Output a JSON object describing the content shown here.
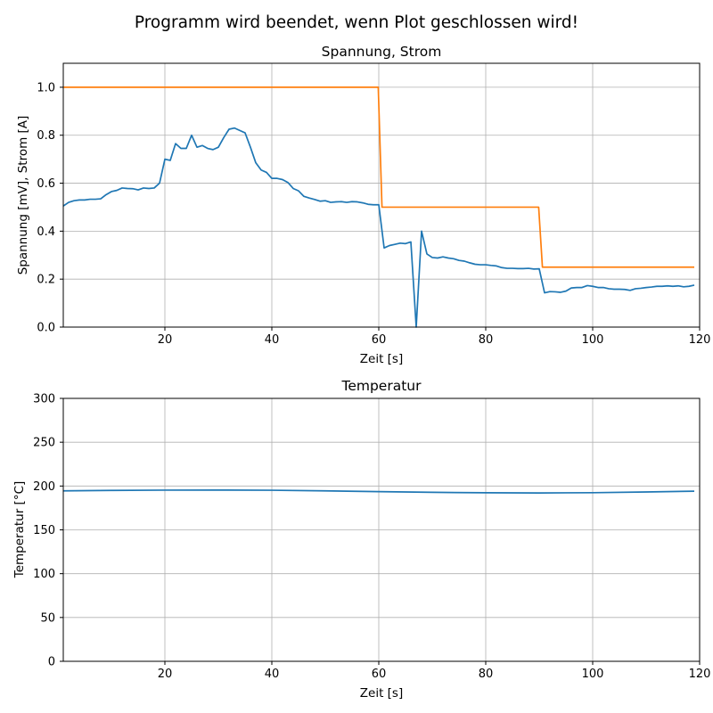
{
  "figure": {
    "suptitle": "Programm wird beendet, wenn Plot geschlossen wird!"
  },
  "colors": {
    "series1": "#1f77b4",
    "series2": "#ff7f0e",
    "grid": "#b0b0b0",
    "axis": "#000000",
    "background": "#ffffff"
  },
  "chart_data": [
    {
      "type": "line",
      "title": "Spannung, Strom",
      "xlabel": "Zeit [s]",
      "ylabel": "Spannung [mV], Strom [A]",
      "xlim": [
        1,
        120
      ],
      "ylim": [
        0,
        1.1
      ],
      "xticks": [
        20,
        40,
        60,
        80,
        100,
        120
      ],
      "xtick_labels": [
        "20",
        "40",
        "60",
        "80",
        "100",
        "120"
      ],
      "yticks": [
        0,
        0.2,
        0.4,
        0.6,
        0.8,
        1.0
      ],
      "ytick_labels": [
        "0.0",
        "0.2",
        "0.4",
        "0.6",
        "0.8",
        "1.0"
      ],
      "grid": true,
      "series": [
        {
          "color": "#1f77b4",
          "x": [
            1,
            2,
            3,
            4,
            5,
            6,
            7,
            8,
            9,
            10,
            11,
            12,
            13,
            14,
            15,
            16,
            17,
            18,
            19,
            20,
            21,
            22,
            23,
            24,
            25,
            26,
            27,
            28,
            29,
            30,
            31,
            32,
            33,
            34,
            35,
            36,
            37,
            38,
            39,
            40,
            41,
            42,
            43,
            44,
            45,
            46,
            47,
            48,
            49,
            50,
            51,
            52,
            53,
            54,
            55,
            56,
            57,
            58,
            59,
            60,
            61,
            62,
            63,
            64,
            65,
            66,
            67,
            68,
            69,
            70,
            71,
            72,
            73,
            74,
            75,
            76,
            77,
            78,
            79,
            80,
            81,
            82,
            83,
            84,
            85,
            86,
            87,
            88,
            89,
            90,
            91,
            92,
            93,
            94,
            95,
            96,
            97,
            98,
            99,
            100,
            101,
            102,
            103,
            104,
            105,
            106,
            107,
            108,
            109,
            110,
            111,
            112,
            113,
            114,
            115,
            116,
            117,
            118,
            119
          ],
          "y": [
            0.505,
            0.52,
            0.527,
            0.53,
            0.53,
            0.533,
            0.533,
            0.535,
            0.552,
            0.565,
            0.57,
            0.58,
            0.578,
            0.577,
            0.572,
            0.58,
            0.578,
            0.58,
            0.6,
            0.7,
            0.695,
            0.765,
            0.745,
            0.745,
            0.8,
            0.75,
            0.757,
            0.745,
            0.74,
            0.75,
            0.79,
            0.825,
            0.83,
            0.82,
            0.81,
            0.75,
            0.685,
            0.655,
            0.645,
            0.62,
            0.62,
            0.615,
            0.603,
            0.578,
            0.568,
            0.545,
            0.538,
            0.532,
            0.525,
            0.527,
            0.52,
            0.522,
            0.523,
            0.52,
            0.523,
            0.522,
            0.518,
            0.512,
            0.51,
            0.51,
            0.33,
            0.34,
            0.345,
            0.35,
            0.348,
            0.355,
            0.0,
            0.4,
            0.305,
            0.29,
            0.288,
            0.293,
            0.288,
            0.285,
            0.278,
            0.275,
            0.268,
            0.262,
            0.26,
            0.26,
            0.257,
            0.255,
            0.248,
            0.245,
            0.245,
            0.244,
            0.244,
            0.245,
            0.242,
            0.243,
            0.143,
            0.148,
            0.147,
            0.145,
            0.15,
            0.163,
            0.165,
            0.165,
            0.173,
            0.17,
            0.165,
            0.165,
            0.16,
            0.158,
            0.158,
            0.157,
            0.153,
            0.16,
            0.162,
            0.165,
            0.167,
            0.17,
            0.17,
            0.172,
            0.17,
            0.172,
            0.168,
            0.17,
            0.175
          ]
        },
        {
          "color": "#ff7f0e",
          "x": [
            1,
            59.9,
            60.6,
            89.9,
            90.6,
            119
          ],
          "y": [
            1.0,
            1.0,
            0.5,
            0.5,
            0.25,
            0.25
          ]
        }
      ]
    },
    {
      "type": "line",
      "title": "Temperatur",
      "xlabel": "Zeit [s]",
      "ylabel": "Temperatur [°C]",
      "xlim": [
        1,
        120
      ],
      "ylim": [
        0,
        300
      ],
      "xticks": [
        20,
        40,
        60,
        80,
        100,
        120
      ],
      "xtick_labels": [
        "20",
        "40",
        "60",
        "80",
        "100",
        "120"
      ],
      "yticks": [
        0,
        50,
        100,
        150,
        200,
        250,
        300
      ],
      "ytick_labels": [
        "0",
        "50",
        "100",
        "150",
        "200",
        "250",
        "300"
      ],
      "grid": true,
      "series": [
        {
          "color": "#1f77b4",
          "x": [
            1,
            10,
            20,
            30,
            40,
            50,
            60,
            70,
            80,
            90,
            100,
            110,
            119
          ],
          "y": [
            194.5,
            195.0,
            195.3,
            195.4,
            195.2,
            194.5,
            193.6,
            192.8,
            192.3,
            192.1,
            192.4,
            193.2,
            194.1
          ]
        }
      ]
    }
  ]
}
